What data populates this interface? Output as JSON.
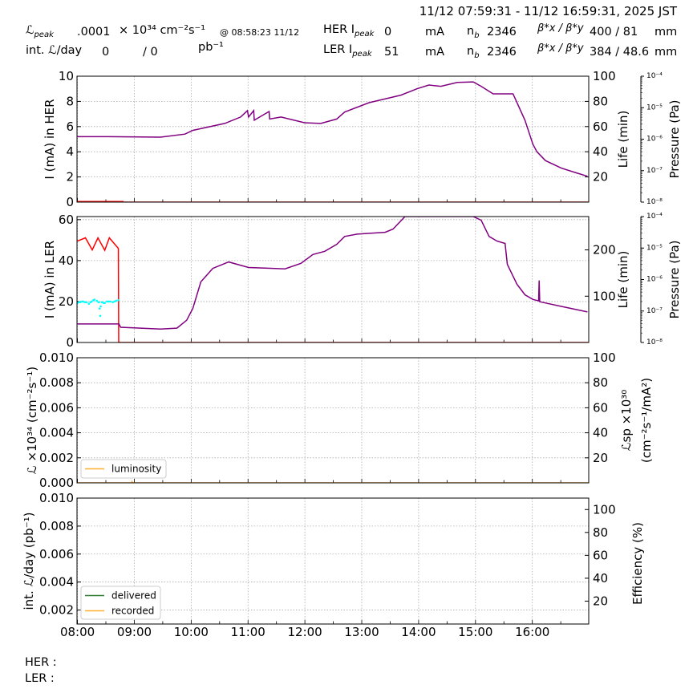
{
  "header": {
    "date_range": "11/12 07:59:31 - 11/12 16:59:31, 2025 JST",
    "lpeak_symbol": "ℒ",
    "peak_sub": "peak",
    "lpeak_value": ".0001",
    "lpeak_unit": "× 10³⁴ cm⁻²s⁻¹",
    "lpeak_time": "@ 08:58:23 11/12",
    "intl_label": "int. ℒ/day",
    "intl_delivered": "0",
    "intl_sep": "/ 0",
    "intl_unit": "pb⁻¹",
    "her": {
      "label": "HER I",
      "ipeak": "0",
      "unit": "mA",
      "nb_label": "n",
      "nb_sub": "b",
      "nb": "2346",
      "beta_label": "β*x / β*y",
      "beta": "400 / 81",
      "beta_unit": "mm"
    },
    "ler": {
      "label": "LER I",
      "ipeak": "51",
      "unit": "mA",
      "nb_label": "n",
      "nb_sub": "b",
      "nb": "2346",
      "beta_label": "β*x / β*y",
      "beta": "384 / 48.6",
      "beta_unit": "mm"
    }
  },
  "footer": {
    "her": "HER :",
    "ler": "LER :"
  },
  "colors": {
    "her_current": "#ff0000",
    "life": "#800080",
    "pressure": "#00ffff",
    "luminosity": "#ffb030",
    "delivered": "#2e7d32",
    "recorded": "#ffb030",
    "grid": "#999999"
  },
  "chart_data": [
    {
      "type": "line",
      "ylabel": "I (mA) in HER",
      "ylabel_right": "Life (min)",
      "ylabel_right2": "Pressure (Pa)",
      "xlim": [
        "07:59:31",
        "16:59:31"
      ],
      "ylim": [
        0,
        10
      ],
      "ylim_right": [
        0,
        100
      ],
      "ylim_pressure": [
        1e-08,
        0.0001
      ],
      "pressure_scale": "log",
      "grid": true,
      "yticks": [
        0,
        2,
        4,
        6,
        8,
        10
      ],
      "ytick_labels": [
        "0",
        "2",
        "4",
        "6",
        "8",
        "10"
      ],
      "yticks_right": [
        20,
        40,
        60,
        80,
        100
      ],
      "ytick_labels_right": [
        "20",
        "40",
        "60",
        "80",
        "100"
      ],
      "pressure_ticks": [
        "10⁻⁴",
        "10⁻⁵",
        "10⁻⁶",
        "10⁻⁷",
        "10⁻⁸"
      ],
      "series": [
        {
          "axis": "left",
          "color_key": "her_current",
          "points": [
            [
              8.0,
              0.05
            ],
            [
              8.8,
              0.05
            ],
            [
              8.8,
              0
            ],
            [
              16.99,
              0
            ]
          ]
        },
        {
          "axis": "right",
          "color_key": "life",
          "points": [
            [
              8.0,
              52
            ],
            [
              8.55,
              52
            ],
            [
              9.46,
              51.6
            ],
            [
              9.89,
              54
            ],
            [
              10.03,
              57
            ],
            [
              10.59,
              62.5
            ],
            [
              10.87,
              67.6
            ],
            [
              10.99,
              72.7
            ],
            [
              11.01,
              67.6
            ],
            [
              11.1,
              72.7
            ],
            [
              11.11,
              65
            ],
            [
              11.37,
              72
            ],
            [
              11.38,
              66
            ],
            [
              11.58,
              67.6
            ],
            [
              12.0,
              63
            ],
            [
              12.28,
              62.5
            ],
            [
              12.56,
              66
            ],
            [
              12.7,
              71.5
            ],
            [
              13.13,
              79
            ],
            [
              13.69,
              85
            ],
            [
              13.97,
              90
            ],
            [
              14.18,
              93
            ],
            [
              14.39,
              92
            ],
            [
              14.68,
              95
            ],
            [
              14.96,
              95.5
            ],
            [
              15.1,
              92
            ],
            [
              15.31,
              86
            ],
            [
              15.66,
              86
            ],
            [
              15.87,
              65
            ],
            [
              16.01,
              46
            ],
            [
              16.08,
              40
            ],
            [
              16.23,
              33
            ],
            [
              16.51,
              27
            ],
            [
              16.79,
              23
            ],
            [
              16.97,
              20.6
            ]
          ]
        }
      ]
    },
    {
      "type": "line",
      "ylabel": "I (mA) in LER",
      "ylabel_right": "Life (min)",
      "ylabel_right2": "Pressure (Pa)",
      "xlim": [
        "07:59:31",
        "16:59:31"
      ],
      "ylim": [
        0,
        61.5
      ],
      "ylim_right": [
        0,
        272
      ],
      "ylim_pressure": [
        1e-08,
        0.0001
      ],
      "pressure_scale": "log",
      "grid": true,
      "yticks": [
        0,
        20,
        40,
        60
      ],
      "ytick_labels": [
        "0",
        "20",
        "40",
        "60"
      ],
      "yticks_right": [
        100,
        200
      ],
      "ytick_labels_right": [
        "100",
        "200"
      ],
      "pressure_ticks": [
        "10⁻⁴",
        "10⁻⁵",
        "10⁻⁶",
        "10⁻⁷",
        "10⁻⁸"
      ],
      "series": [
        {
          "axis": "left",
          "color_key": "her_current",
          "points": [
            [
              8.0,
              49.5
            ],
            [
              8.14,
              51.1
            ],
            [
              8.26,
              45.2
            ],
            [
              8.36,
              51.1
            ],
            [
              8.48,
              45
            ],
            [
              8.56,
              51.1
            ],
            [
              8.72,
              45.9
            ],
            [
              8.725,
              0
            ],
            [
              16.99,
              0
            ]
          ]
        },
        {
          "axis": "pressure",
          "color_key": "pressure",
          "style": "dots",
          "points": [
            [
              8.0,
              1.8e-07
            ],
            [
              8.03,
              1.9e-07
            ],
            [
              8.05,
              1.9e-07
            ],
            [
              8.08,
              2e-07
            ],
            [
              8.1,
              2e-07
            ],
            [
              8.13,
              1.9e-07
            ],
            [
              8.16,
              1.9e-07
            ],
            [
              8.2,
              1.7e-07
            ],
            [
              8.23,
              1.9e-07
            ],
            [
              8.25,
              2e-07
            ],
            [
              8.28,
              2.2e-07
            ],
            [
              8.3,
              2.3e-07
            ],
            [
              8.34,
              2.1e-07
            ],
            [
              8.37,
              1.9e-07
            ],
            [
              8.38,
              1.9e-07
            ],
            [
              8.39,
              1.2e-07
            ],
            [
              8.4,
              7e-08
            ],
            [
              8.41,
              1.4e-07
            ],
            [
              8.43,
              1.9e-07
            ],
            [
              8.46,
              1.8e-07
            ],
            [
              8.48,
              1.8e-07
            ],
            [
              8.52,
              2e-07
            ],
            [
              8.55,
              2e-07
            ],
            [
              8.58,
              2e-07
            ],
            [
              8.62,
              1.9e-07
            ],
            [
              8.65,
              2e-07
            ],
            [
              8.68,
              2.1e-07
            ],
            [
              8.72,
              2.2e-07
            ]
          ]
        },
        {
          "axis": "right",
          "color_key": "life",
          "points": [
            [
              8.0,
              40
            ],
            [
              8.73,
              40
            ],
            [
              8.76,
              33
            ],
            [
              9.46,
              29
            ],
            [
              9.75,
              31
            ],
            [
              9.92,
              48
            ],
            [
              10.03,
              74
            ],
            [
              10.17,
              131
            ],
            [
              10.38,
              160
            ],
            [
              10.66,
              174
            ],
            [
              11.01,
              162
            ],
            [
              11.44,
              160
            ],
            [
              11.65,
              159
            ],
            [
              11.93,
              171
            ],
            [
              12.14,
              190
            ],
            [
              12.35,
              197
            ],
            [
              12.56,
              212
            ],
            [
              12.7,
              229
            ],
            [
              12.92,
              234
            ],
            [
              13.41,
              238
            ],
            [
              13.55,
              245
            ],
            [
              13.76,
              272
            ],
            [
              14.96,
              272
            ],
            [
              15.1,
              264
            ],
            [
              15.24,
              229
            ],
            [
              15.38,
              219
            ],
            [
              15.52,
              214
            ],
            [
              15.56,
              169
            ],
            [
              15.73,
              126
            ],
            [
              15.87,
              103
            ],
            [
              16.01,
              93
            ],
            [
              16.11,
              90
            ],
            [
              16.12,
              134
            ],
            [
              16.13,
              88
            ],
            [
              16.51,
              78
            ],
            [
              16.97,
              66
            ]
          ]
        }
      ]
    },
    {
      "type": "line",
      "ylabel": "ℒ ×10³⁴ (cm⁻²s⁻¹)",
      "ylabel_right": "ℒsp ×10³⁰",
      "ylabel_right2": "(cm⁻²s⁻¹/mA²)",
      "xlim": [
        "07:59:31",
        "16:59:31"
      ],
      "ylim": [
        0,
        0.01
      ],
      "ylim_right": [
        0,
        100
      ],
      "grid": true,
      "yticks": [
        0,
        0.002,
        0.004,
        0.006,
        0.008,
        0.01
      ],
      "ytick_labels": [
        "0.000",
        "0.002",
        "0.004",
        "0.006",
        "0.008",
        "0.010"
      ],
      "yticks_right": [
        20,
        40,
        60,
        80,
        100
      ],
      "ytick_labels_right": [
        "20",
        "40",
        "60",
        "80",
        "100"
      ],
      "legend": {
        "placement": "lower-left",
        "entries": [
          {
            "label": "luminosity",
            "color_key": "luminosity"
          }
        ]
      },
      "series": [
        {
          "name": "luminosity",
          "axis": "left",
          "color_key": "luminosity",
          "points": [
            [
              7.99,
              0
            ],
            [
              8.95,
              0
            ],
            [
              8.96,
              0.0001
            ],
            [
              8.97,
              0
            ],
            [
              16.99,
              0
            ]
          ]
        }
      ]
    },
    {
      "type": "line",
      "ylabel": "int. ℒ/day (pb⁻¹)",
      "ylabel_right": "Efficiency (%)",
      "xlim": [
        "07:59:31",
        "16:59:31"
      ],
      "ylim": [
        0.001,
        0.01
      ],
      "ylim_right": [
        0,
        110
      ],
      "grid": true,
      "yticks": [
        0.002,
        0.004,
        0.006,
        0.008,
        0.01
      ],
      "ytick_labels": [
        "0.002",
        "0.004",
        "0.006",
        "0.008",
        "0.010"
      ],
      "yticks_right": [
        20,
        40,
        60,
        80,
        100
      ],
      "ytick_labels_right": [
        "20",
        "40",
        "60",
        "80",
        "100"
      ],
      "xticks": [
        8,
        9,
        10,
        11,
        12,
        13,
        14,
        15,
        16
      ],
      "xtick_labels": [
        "08:00",
        "09:00",
        "10:00",
        "11:00",
        "12:00",
        "13:00",
        "14:00",
        "15:00",
        "16:00"
      ],
      "legend": {
        "placement": "lower-left",
        "entries": [
          {
            "label": "delivered",
            "color_key": "delivered"
          },
          {
            "label": "recorded",
            "color_key": "recorded"
          }
        ]
      },
      "series": []
    }
  ]
}
